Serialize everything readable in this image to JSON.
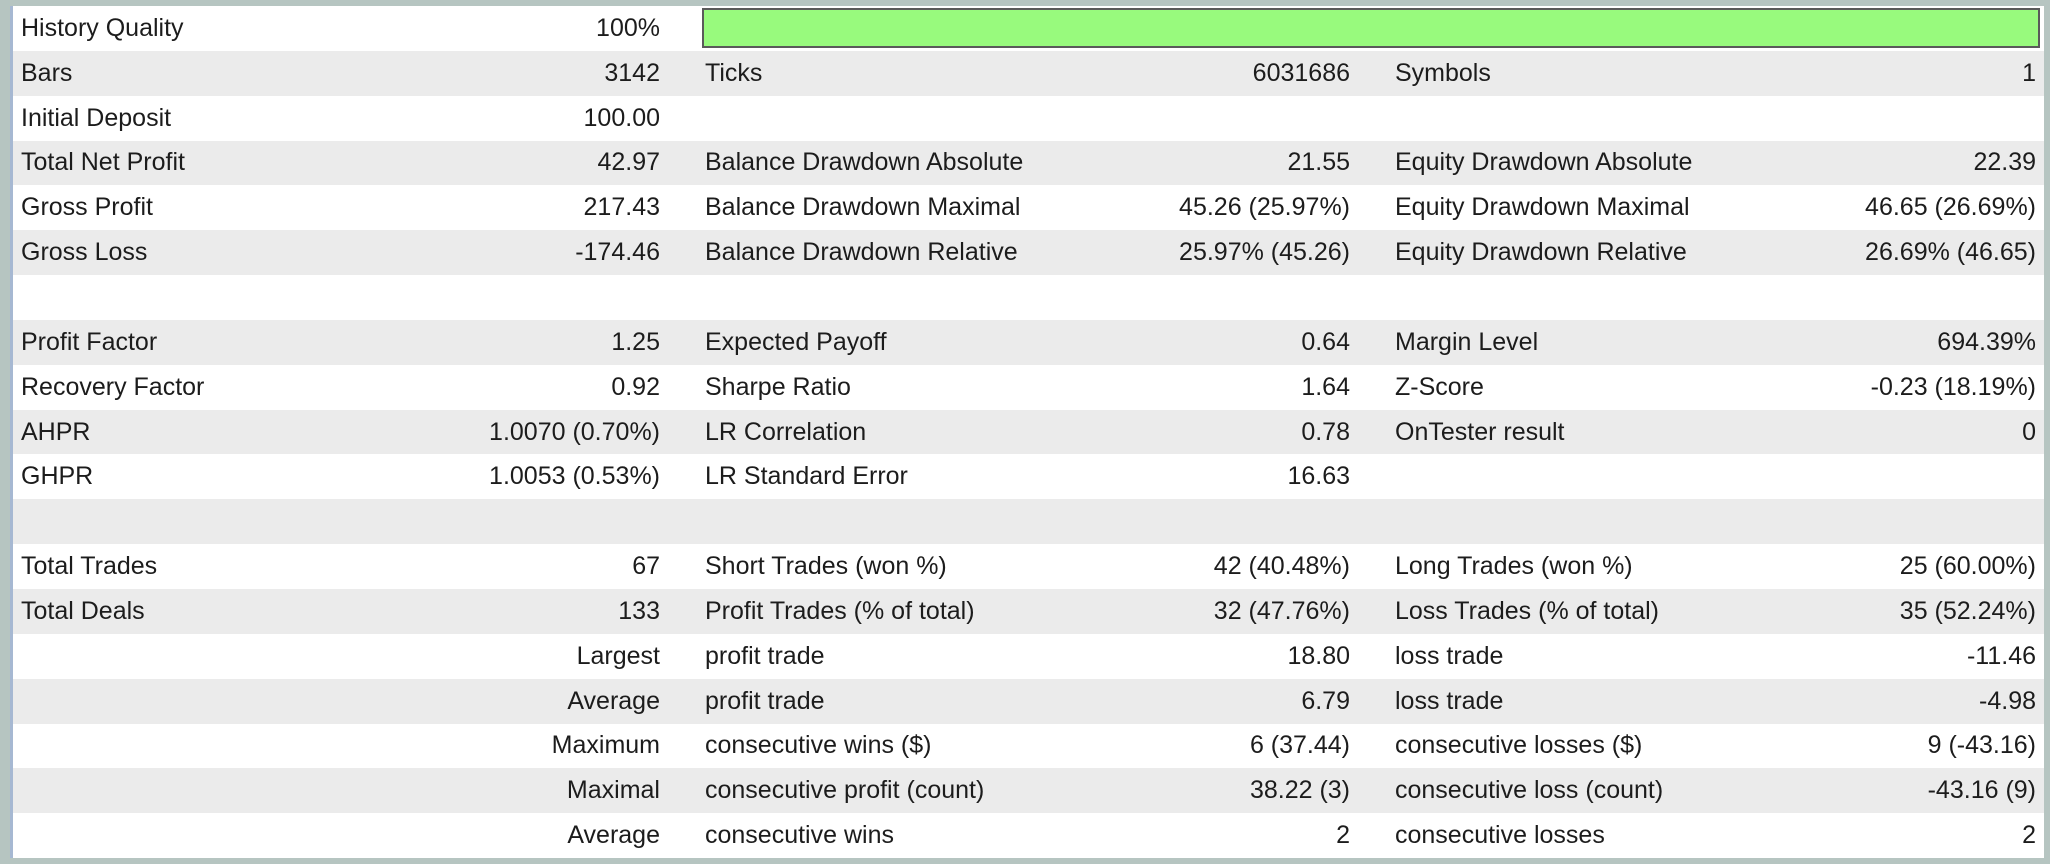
{
  "report_name": "strategy-tester-backtest-results",
  "colors": {
    "frame_border": "#B6C5C1",
    "accent_line": "#A6B8D2",
    "shaded_row": "#EBEBEB",
    "text": "#1C1C1C",
    "quality_bar_fill": "#98FA7D",
    "quality_bar_border": "#5A5A5A"
  },
  "history_quality": {
    "label": "History Quality",
    "value": "100%",
    "bar_percent": 100
  },
  "rows": [
    {
      "shaded": false,
      "cells": [
        "History Quality",
        "100%",
        "",
        "",
        "",
        ""
      ]
    },
    {
      "shaded": true,
      "cells": [
        "Bars",
        "3142",
        "Ticks",
        "6031686",
        "Symbols",
        "1"
      ]
    },
    {
      "shaded": false,
      "cells": [
        "Initial Deposit",
        "100.00",
        "",
        "",
        "",
        ""
      ]
    },
    {
      "shaded": true,
      "cells": [
        "Total Net Profit",
        "42.97",
        "Balance Drawdown Absolute",
        "21.55",
        "Equity Drawdown Absolute",
        "22.39"
      ]
    },
    {
      "shaded": false,
      "cells": [
        "Gross Profit",
        "217.43",
        "Balance Drawdown Maximal",
        "45.26 (25.97%)",
        "Equity Drawdown Maximal",
        "46.65 (26.69%)"
      ]
    },
    {
      "shaded": true,
      "cells": [
        "Gross Loss",
        "-174.46",
        "Balance Drawdown Relative",
        "25.97% (45.26)",
        "Equity Drawdown Relative",
        "26.69% (46.65)"
      ]
    },
    {
      "shaded": false,
      "cells": [
        "",
        "",
        "",
        "",
        "",
        ""
      ]
    },
    {
      "shaded": true,
      "cells": [
        "Profit Factor",
        "1.25",
        "Expected Payoff",
        "0.64",
        "Margin Level",
        "694.39%"
      ]
    },
    {
      "shaded": false,
      "cells": [
        "Recovery Factor",
        "0.92",
        "Sharpe Ratio",
        "1.64",
        "Z-Score",
        "-0.23 (18.19%)"
      ]
    },
    {
      "shaded": true,
      "cells": [
        "AHPR",
        "1.0070 (0.70%)",
        "LR Correlation",
        "0.78",
        "OnTester result",
        "0"
      ]
    },
    {
      "shaded": false,
      "cells": [
        "GHPR",
        "1.0053 (0.53%)",
        "LR Standard Error",
        "16.63",
        "",
        ""
      ]
    },
    {
      "shaded": true,
      "cells": [
        "",
        "",
        "",
        "",
        "",
        ""
      ]
    },
    {
      "shaded": false,
      "cells": [
        "Total Trades",
        "67",
        "Short Trades (won %)",
        "42 (40.48%)",
        "Long Trades (won %)",
        "25 (60.00%)"
      ]
    },
    {
      "shaded": true,
      "cells": [
        "Total Deals",
        "133",
        "Profit Trades (% of total)",
        "32 (47.76%)",
        "Loss Trades (% of total)",
        "35 (52.24%)"
      ]
    },
    {
      "shaded": false,
      "cells": [
        "",
        "Largest",
        "profit trade",
        "18.80",
        "loss trade",
        "-11.46"
      ]
    },
    {
      "shaded": true,
      "cells": [
        "",
        "Average",
        "profit trade",
        "6.79",
        "loss trade",
        "-4.98"
      ]
    },
    {
      "shaded": false,
      "cells": [
        "",
        "Maximum",
        "consecutive wins ($)",
        "6 (37.44)",
        "consecutive losses ($)",
        "9 (-43.16)"
      ]
    },
    {
      "shaded": true,
      "cells": [
        "",
        "Maximal",
        "consecutive profit (count)",
        "38.22 (3)",
        "consecutive loss (count)",
        "-43.16 (9)"
      ]
    },
    {
      "shaded": false,
      "cells": [
        "",
        "Average",
        "consecutive wins",
        "2",
        "consecutive losses",
        "2"
      ]
    }
  ]
}
